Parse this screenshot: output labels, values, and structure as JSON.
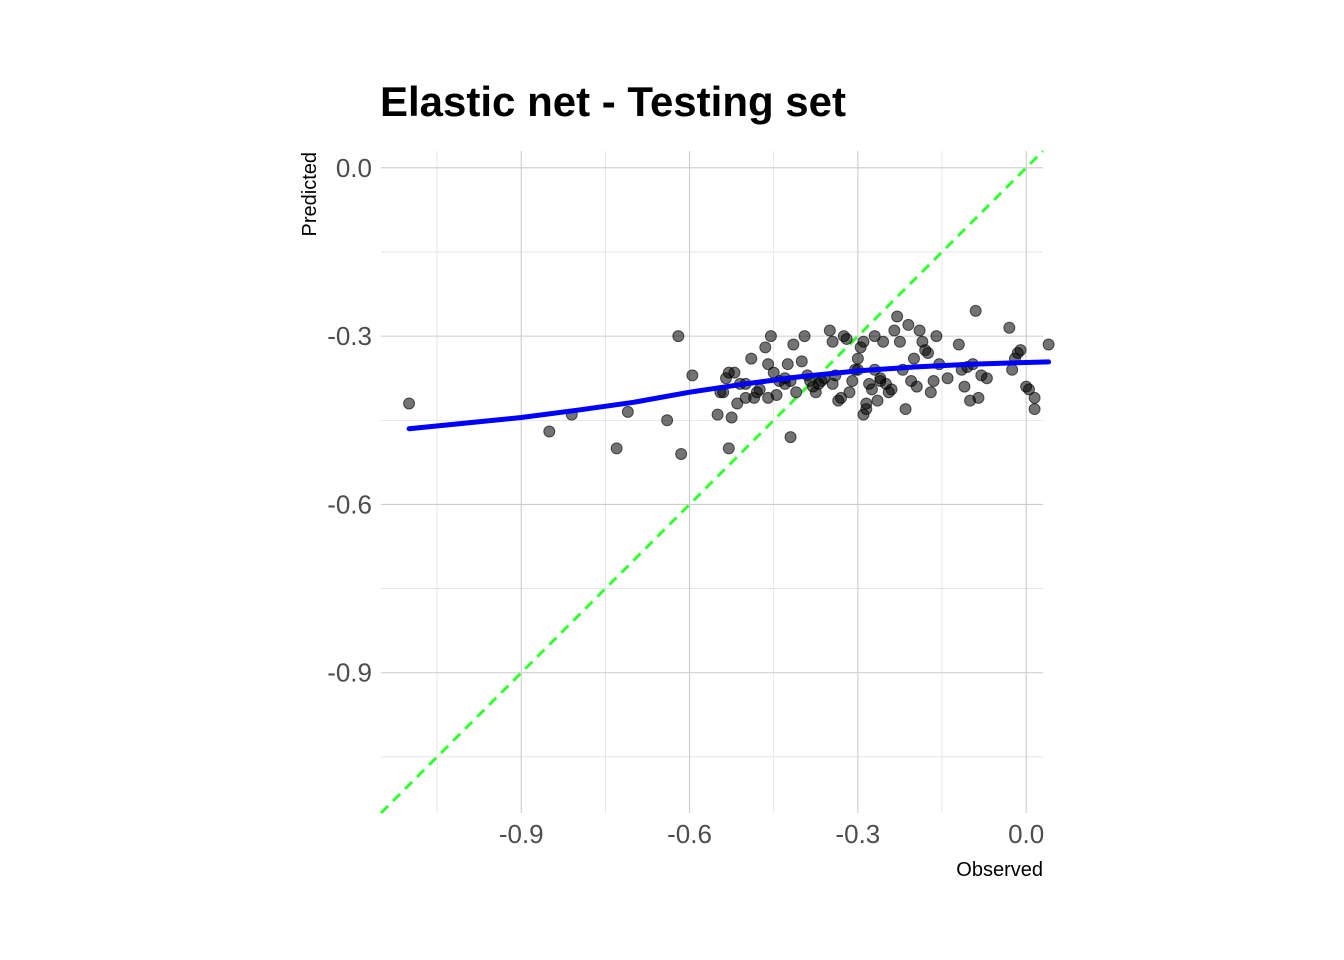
{
  "chart_data": {
    "type": "scatter",
    "title": "Elastic net - Testing set",
    "xlabel": "Observed",
    "ylabel": "Predicted",
    "xlim": [
      -1.15,
      0.03
    ],
    "ylim": [
      -1.15,
      0.03
    ],
    "xticks": [
      -0.9,
      -0.6,
      -0.3,
      0.0
    ],
    "yticks": [
      0.0,
      -0.3,
      -0.6,
      -0.9
    ],
    "xtick_labels": [
      "-0.9",
      "-0.6",
      "-0.3",
      "0.0"
    ],
    "ytick_labels": [
      "0.0",
      "-0.3",
      "-0.6",
      "-0.9"
    ],
    "grid": true,
    "points": [
      [
        -1.1,
        -0.42
      ],
      [
        -0.85,
        -0.47
      ],
      [
        -0.81,
        -0.44
      ],
      [
        -0.73,
        -0.5
      ],
      [
        -0.71,
        -0.435
      ],
      [
        -0.64,
        -0.45
      ],
      [
        -0.62,
        -0.3
      ],
      [
        -0.615,
        -0.51
      ],
      [
        -0.595,
        -0.37
      ],
      [
        -0.55,
        -0.44
      ],
      [
        -0.545,
        -0.4
      ],
      [
        -0.54,
        -0.4
      ],
      [
        -0.535,
        -0.375
      ],
      [
        -0.53,
        -0.5
      ],
      [
        -0.53,
        -0.365
      ],
      [
        -0.525,
        -0.445
      ],
      [
        -0.52,
        -0.365
      ],
      [
        -0.515,
        -0.42
      ],
      [
        -0.51,
        -0.385
      ],
      [
        -0.5,
        -0.385
      ],
      [
        -0.49,
        -0.34
      ],
      [
        -0.485,
        -0.41
      ],
      [
        -0.48,
        -0.4
      ],
      [
        -0.475,
        -0.395
      ],
      [
        -0.465,
        -0.32
      ],
      [
        -0.46,
        -0.35
      ],
      [
        -0.455,
        -0.3
      ],
      [
        -0.45,
        -0.365
      ],
      [
        -0.445,
        -0.405
      ],
      [
        -0.44,
        -0.38
      ],
      [
        -0.43,
        -0.385
      ],
      [
        -0.425,
        -0.35
      ],
      [
        -0.42,
        -0.48
      ],
      [
        -0.415,
        -0.315
      ],
      [
        -0.41,
        -0.4
      ],
      [
        -0.4,
        -0.345
      ],
      [
        -0.395,
        -0.3
      ],
      [
        -0.39,
        -0.37
      ],
      [
        -0.385,
        -0.38
      ],
      [
        -0.38,
        -0.39
      ],
      [
        -0.375,
        -0.4
      ],
      [
        -0.37,
        -0.385
      ],
      [
        -0.365,
        -0.38
      ],
      [
        -0.36,
        -0.375
      ],
      [
        -0.35,
        -0.29
      ],
      [
        -0.345,
        -0.31
      ],
      [
        -0.335,
        -0.415
      ],
      [
        -0.33,
        -0.41
      ],
      [
        -0.325,
        -0.3
      ],
      [
        -0.32,
        -0.305
      ],
      [
        -0.315,
        -0.4
      ],
      [
        -0.31,
        -0.38
      ],
      [
        -0.305,
        -0.36
      ],
      [
        -0.3,
        -0.34
      ],
      [
        -0.3,
        -0.36
      ],
      [
        -0.295,
        -0.32
      ],
      [
        -0.29,
        -0.31
      ],
      [
        -0.29,
        -0.44
      ],
      [
        -0.285,
        -0.43
      ],
      [
        -0.285,
        -0.42
      ],
      [
        -0.28,
        -0.385
      ],
      [
        -0.275,
        -0.395
      ],
      [
        -0.27,
        -0.3
      ],
      [
        -0.265,
        -0.415
      ],
      [
        -0.26,
        -0.38
      ],
      [
        -0.255,
        -0.31
      ],
      [
        -0.25,
        -0.385
      ],
      [
        -0.245,
        -0.4
      ],
      [
        -0.24,
        -0.395
      ],
      [
        -0.235,
        -0.29
      ],
      [
        -0.23,
        -0.265
      ],
      [
        -0.225,
        -0.31
      ],
      [
        -0.22,
        -0.36
      ],
      [
        -0.215,
        -0.43
      ],
      [
        -0.21,
        -0.28
      ],
      [
        -0.205,
        -0.38
      ],
      [
        -0.2,
        -0.34
      ],
      [
        -0.195,
        -0.39
      ],
      [
        -0.19,
        -0.29
      ],
      [
        -0.185,
        -0.31
      ],
      [
        -0.18,
        -0.325
      ],
      [
        -0.175,
        -0.33
      ],
      [
        -0.17,
        -0.4
      ],
      [
        -0.165,
        -0.38
      ],
      [
        -0.16,
        -0.3
      ],
      [
        -0.155,
        -0.35
      ],
      [
        -0.14,
        -0.375
      ],
      [
        -0.12,
        -0.315
      ],
      [
        -0.115,
        -0.36
      ],
      [
        -0.11,
        -0.39
      ],
      [
        -0.105,
        -0.355
      ],
      [
        -0.1,
        -0.415
      ],
      [
        -0.095,
        -0.35
      ],
      [
        -0.09,
        -0.255
      ],
      [
        -0.085,
        -0.41
      ],
      [
        -0.08,
        -0.37
      ],
      [
        -0.07,
        -0.375
      ],
      [
        -0.03,
        -0.285
      ],
      [
        -0.025,
        -0.36
      ],
      [
        -0.02,
        -0.34
      ],
      [
        -0.015,
        -0.33
      ],
      [
        -0.01,
        -0.325
      ],
      [
        0.0,
        -0.39
      ],
      [
        0.005,
        -0.395
      ],
      [
        0.015,
        -0.43
      ],
      [
        0.015,
        -0.41
      ],
      [
        -0.42,
        -0.38
      ],
      [
        -0.43,
        -0.375
      ],
      [
        -0.34,
        -0.37
      ],
      [
        -0.345,
        -0.385
      ],
      [
        -0.26,
        -0.375
      ],
      [
        -0.27,
        -0.36
      ],
      [
        -0.5,
        -0.41
      ],
      [
        -0.46,
        -0.41
      ],
      [
        0.04,
        -0.315
      ]
    ],
    "reference_line": {
      "slope": 1,
      "intercept": 0,
      "style": "dashed",
      "color": "#33ff33"
    },
    "smooth_line": {
      "color": "#0000ff",
      "points": [
        [
          -1.1,
          -0.465
        ],
        [
          -1.0,
          -0.455
        ],
        [
          -0.9,
          -0.445
        ],
        [
          -0.8,
          -0.432
        ],
        [
          -0.7,
          -0.418
        ],
        [
          -0.6,
          -0.4
        ],
        [
          -0.5,
          -0.385
        ],
        [
          -0.4,
          -0.372
        ],
        [
          -0.3,
          -0.362
        ],
        [
          -0.2,
          -0.355
        ],
        [
          -0.1,
          -0.35
        ],
        [
          0.0,
          -0.347
        ],
        [
          0.04,
          -0.346
        ]
      ]
    },
    "point_color": "#000000",
    "point_alpha": 0.55
  }
}
